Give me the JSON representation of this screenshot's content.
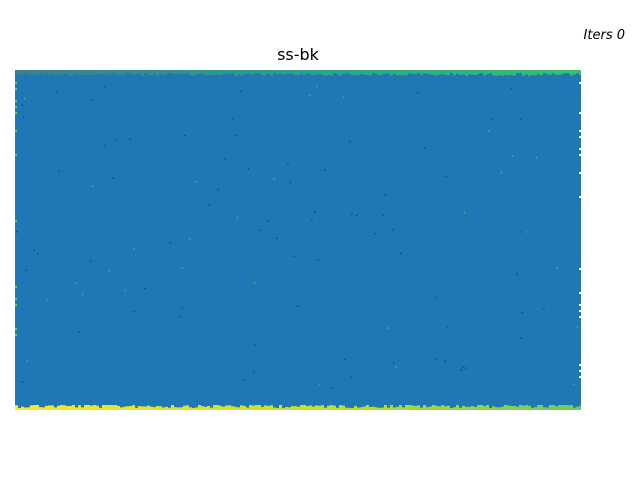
{
  "figure": {
    "title": "ss-bk",
    "iters_label": "Iters 0"
  },
  "image_map": {
    "colormap": "viridis",
    "colors": {
      "bulk": "#1f77b4",
      "top_edge_left": "#3b7f8e",
      "top_edge_mid": "#2ca089",
      "top_edge_right": "#3dbc74",
      "bottom_edge_left": "#fde725",
      "bottom_edge_mid": "#c2df23",
      "bottom_edge_right": "#6ccd5a",
      "speck_dark": "#173b5a",
      "speck_green": "#5ec962"
    }
  }
}
